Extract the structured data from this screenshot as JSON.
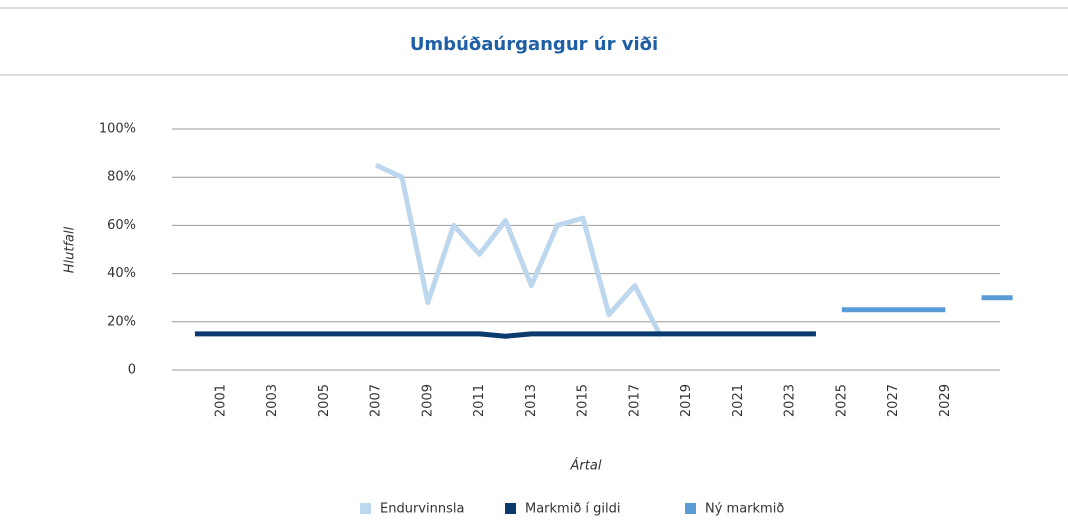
{
  "chart_data": {
    "type": "line",
    "title": "Umbúðaúrgangur úr viði",
    "x_label": "Ártal",
    "y_label": "Hlutfall",
    "categories": [
      null,
      "2001",
      null,
      "2003",
      null,
      "2005",
      null,
      "2007",
      null,
      "2009",
      null,
      "2011",
      null,
      "2013",
      null,
      "2015",
      null,
      "2017",
      null,
      "2019",
      null,
      "2021",
      null,
      "2023",
      null,
      "2025",
      null,
      "2027",
      null,
      "2029",
      null,
      null
    ],
    "series": [
      {
        "name": "Endurvinnsla",
        "color": "#bdd7ee",
        "values": [
          null,
          null,
          null,
          null,
          null,
          null,
          null,
          85,
          80,
          28,
          60,
          48,
          62,
          35,
          60,
          63,
          23,
          35,
          14,
          null,
          null,
          null,
          null,
          null,
          null,
          null,
          null,
          null,
          null,
          null,
          null,
          null
        ]
      },
      {
        "name": "Markmið í gildi",
        "color": "#0b3a6e",
        "values": [
          15,
          15,
          15,
          15,
          15,
          15,
          15,
          15,
          15,
          15,
          15,
          15,
          14,
          15,
          15,
          15,
          15,
          15,
          15,
          15,
          15,
          15,
          15,
          15,
          15,
          null,
          null,
          null,
          null,
          null,
          null,
          null
        ]
      },
      {
        "name": "Ný markmið",
        "color": "#5b9bd5",
        "values": [
          null,
          null,
          null,
          null,
          null,
          null,
          null,
          null,
          null,
          null,
          null,
          null,
          null,
          null,
          null,
          null,
          null,
          null,
          null,
          null,
          null,
          null,
          null,
          null,
          null,
          25,
          25,
          25,
          25,
          25,
          null,
          30
        ]
      }
    ],
    "ylim": [
      0,
      100
    ],
    "yticks": [
      0,
      {
        "value": 20,
        "label": "20%"
      },
      {
        "value": 40,
        "label": "40%"
      },
      {
        "value": 60,
        "label": "60%"
      },
      {
        "value": 80,
        "label": "80%"
      },
      {
        "value": 100,
        "label": "100%"
      }
    ],
    "grid": true,
    "legend": "bottom"
  }
}
